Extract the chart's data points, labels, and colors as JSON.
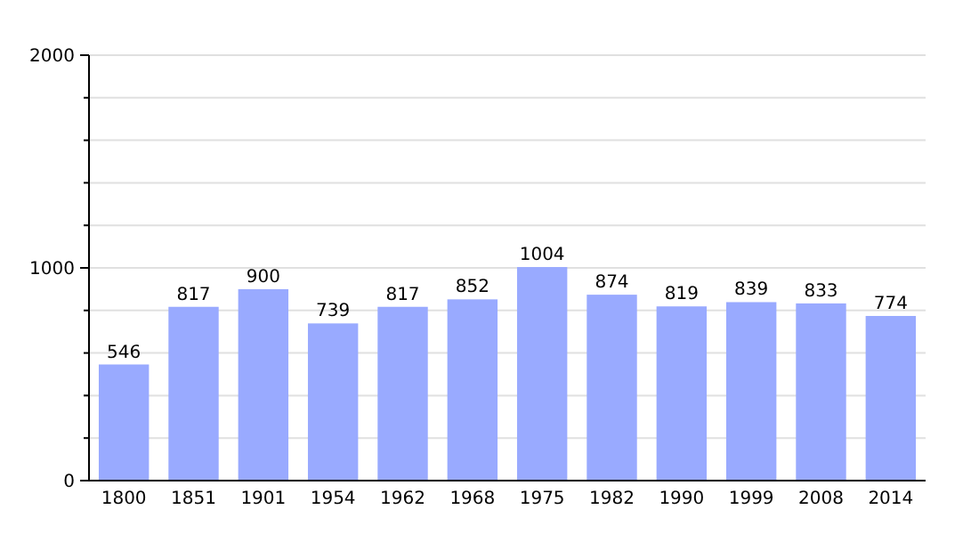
{
  "chart_data": {
    "type": "bar",
    "categories": [
      "1800",
      "1851",
      "1901",
      "1954",
      "1962",
      "1968",
      "1975",
      "1982",
      "1990",
      "1999",
      "2008",
      "2014"
    ],
    "values": [
      546,
      817,
      900,
      739,
      817,
      852,
      1004,
      874,
      819,
      839,
      833,
      774
    ],
    "color": "#99aaff",
    "ylim": [
      0,
      2000
    ],
    "yticks": [
      0,
      {
        "value": 200,
        "label": null
      },
      {
        "value": 400,
        "label": null
      },
      {
        "value": 600,
        "label": null
      },
      {
        "value": 800,
        "label": null
      },
      1000,
      {
        "value": 1200,
        "label": null
      },
      {
        "value": 1400,
        "label": null
      },
      {
        "value": 1600,
        "label": null
      },
      {
        "value": 1800,
        "label": null
      },
      2000
    ],
    "grid": true,
    "data_labels": true
  }
}
